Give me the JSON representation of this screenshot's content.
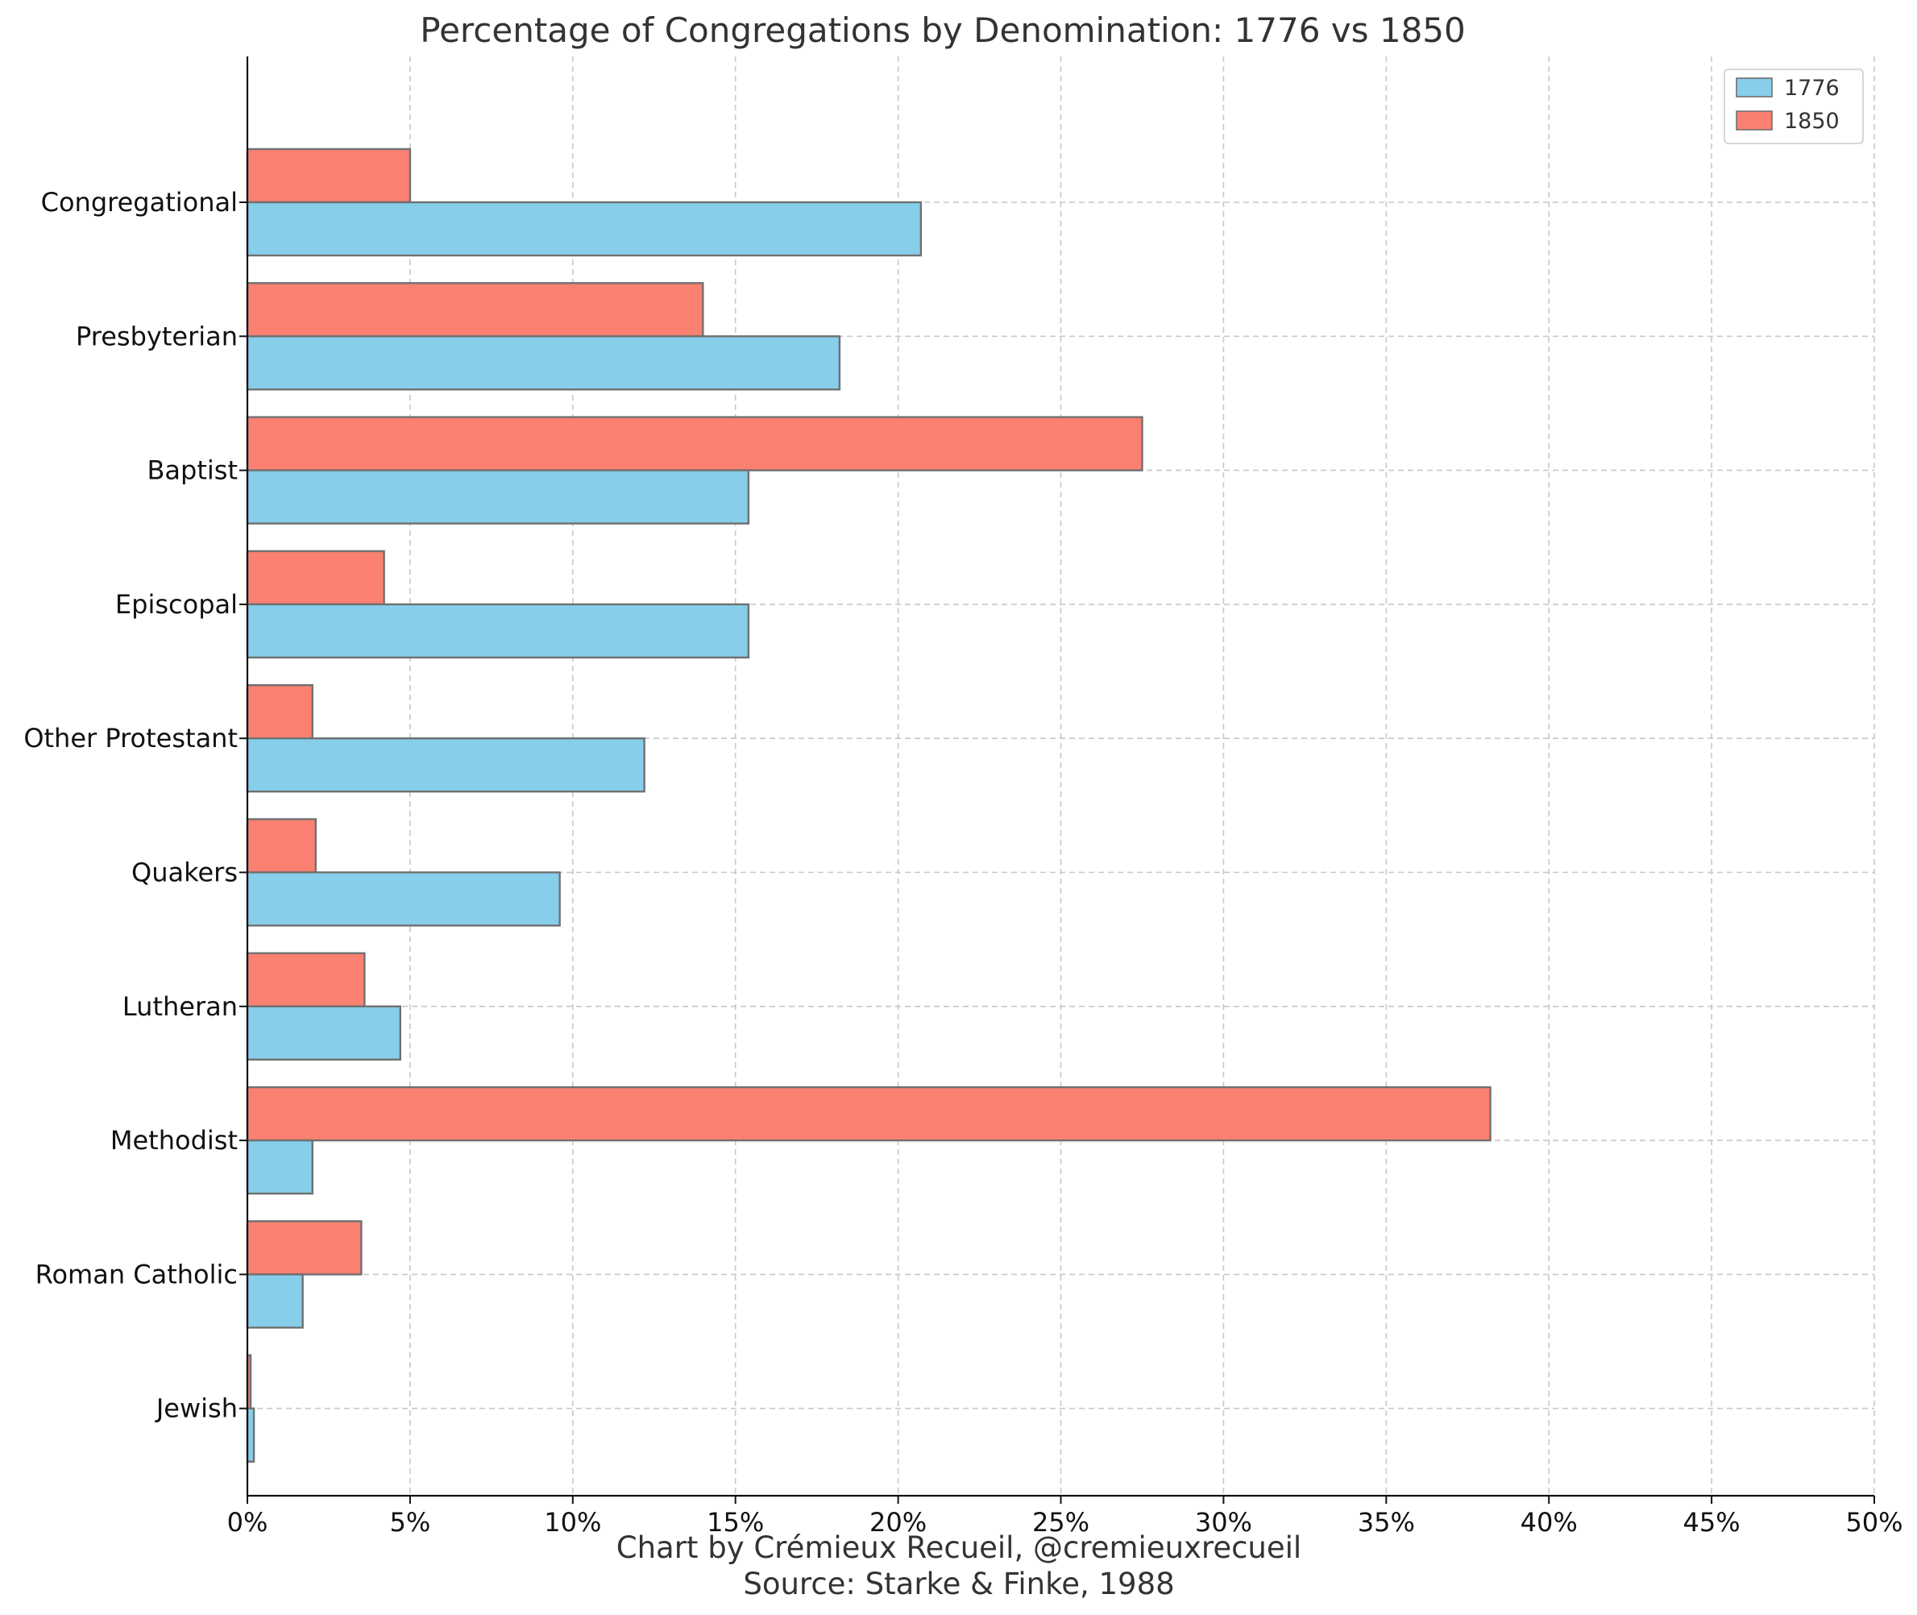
{
  "chart_data": {
    "type": "bar",
    "orientation": "horizontal",
    "title": "Percentage of Congregations by Denomination: 1776 vs 1850",
    "xlabel": "",
    "ylabel": "",
    "categories": [
      "Congregational",
      "Presbyterian",
      "Baptist",
      "Episcopal",
      "Other Protestant",
      "Quakers",
      "Lutheran",
      "Methodist",
      "Roman Catholic",
      "Jewish"
    ],
    "series": [
      {
        "name": "1776",
        "color": "#87ceeb",
        "values": [
          20.7,
          18.2,
          15.4,
          15.4,
          12.2,
          9.6,
          4.7,
          2.0,
          1.7,
          0.2
        ]
      },
      {
        "name": "1850",
        "color": "#fa8072",
        "values": [
          5.0,
          14.0,
          27.5,
          4.2,
          2.0,
          2.1,
          3.6,
          38.2,
          3.5,
          0.1
        ]
      }
    ],
    "xlim": [
      0,
      50
    ],
    "xticks": [
      0,
      5,
      10,
      15,
      20,
      25,
      30,
      35,
      40,
      45,
      50
    ],
    "tick_labels": [
      "0%",
      "5%",
      "10%",
      "15%",
      "20%",
      "25%",
      "30%",
      "35%",
      "40%",
      "45%",
      "50%"
    ],
    "grid": true,
    "legend_position": "top-right",
    "caption_lines": [
      "Chart by Crémieux Recueil, @cremieuxrecueil",
      "Source: Starke & Finke, 1988"
    ]
  }
}
